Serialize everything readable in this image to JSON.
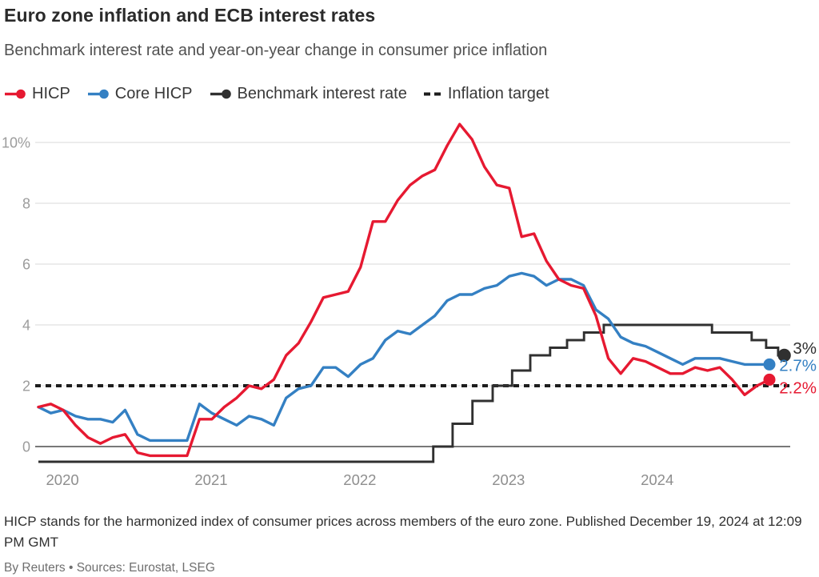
{
  "header": {
    "title": "Euro zone inflation and ECB interest rates",
    "subtitle": "Benchmark interest rate and year-on-year change in consumer price inflation"
  },
  "legend": {
    "items": [
      {
        "label": "HICP",
        "marker": "line-dot",
        "color": "#e61931"
      },
      {
        "label": "Core HICP",
        "marker": "line-dot",
        "color": "#3480c3"
      },
      {
        "label": "Benchmark interest rate",
        "marker": "line-dot",
        "color": "#303030"
      },
      {
        "label": "Inflation target",
        "marker": "dashes",
        "color": "#1d1d1d"
      }
    ]
  },
  "footer": {
    "note": "HICP stands for the harmonized index of consumer prices across members of the euro zone. Published December 19, 2024 at 12:09 PM GMT",
    "byline": "By Reuters • Sources: Eurostat, LSEG"
  },
  "chart_data": {
    "type": "line",
    "title": "Euro zone inflation and ECB interest rates",
    "subtitle": "Benchmark interest rate and year-on-year change in consumer price inflation",
    "x_unit": "month",
    "x_start": "2019-12",
    "x_end_inflation": "2024-11",
    "x_end_rate": "2024-12-18",
    "x_tick_labels": [
      "2020",
      "2021",
      "2022",
      "2023",
      "2024"
    ],
    "yticks": [
      0,
      2,
      4,
      6,
      8,
      10
    ],
    "ytick_labels": [
      "0",
      "2",
      "4",
      "6",
      "8",
      "10%"
    ],
    "ylim": [
      -0.8,
      11.2
    ],
    "grid": "horizontal",
    "legend_position": "top",
    "colors": {
      "grid": "#dadada",
      "zero_axis": "#4c4c4c",
      "tick_text": "#9c9c9c",
      "year_text": "#8e8e8e"
    },
    "inflation_target": {
      "value": 2,
      "style": "dashed",
      "color": "#1d1d1d",
      "label": "Inflation target"
    },
    "series": [
      {
        "key": "benchmark-rate",
        "name": "Benchmark interest rate",
        "type": "step",
        "color": "#303030",
        "end_label": "3%",
        "latest": 3.0,
        "label_dy": -9,
        "initial_rate": -0.5,
        "changes": [
          {
            "date": "2022-07-27",
            "rate": 0
          },
          {
            "date": "2022-09-14",
            "rate": 0.75
          },
          {
            "date": "2022-11-02",
            "rate": 1.5
          },
          {
            "date": "2022-12-21",
            "rate": 2
          },
          {
            "date": "2023-02-08",
            "rate": 2.5
          },
          {
            "date": "2023-03-22",
            "rate": 3
          },
          {
            "date": "2023-05-10",
            "rate": 3.25
          },
          {
            "date": "2023-06-21",
            "rate": 3.5
          },
          {
            "date": "2023-08-02",
            "rate": 3.75
          },
          {
            "date": "2023-09-20",
            "rate": 4
          },
          {
            "date": "2024-06-12",
            "rate": 3.75
          },
          {
            "date": "2024-09-18",
            "rate": 3.5
          },
          {
            "date": "2024-10-23",
            "rate": 3.25
          },
          {
            "date": "2024-12-18",
            "rate": 3
          }
        ]
      },
      {
        "key": "core-hicp",
        "name": "Core HICP",
        "type": "line",
        "color": "#3480c3",
        "end_label": "2.7%",
        "latest": 2.7,
        "label_dy": 1,
        "values": [
          1.3,
          1.1,
          1.2,
          1.0,
          0.9,
          0.9,
          0.8,
          1.2,
          0.4,
          0.2,
          0.2,
          0.2,
          0.2,
          1.4,
          1.1,
          0.9,
          0.7,
          1.0,
          0.9,
          0.7,
          1.6,
          1.9,
          2.0,
          2.6,
          2.6,
          2.3,
          2.7,
          2.9,
          3.5,
          3.8,
          3.7,
          4.0,
          4.3,
          4.8,
          5.0,
          5.0,
          5.2,
          5.3,
          5.6,
          5.7,
          5.6,
          5.3,
          5.5,
          5.5,
          5.3,
          4.5,
          4.2,
          3.6,
          3.4,
          3.3,
          3.1,
          2.9,
          2.7,
          2.9,
          2.9,
          2.9,
          2.8,
          2.7,
          2.7,
          2.7
        ]
      },
      {
        "key": "hicp",
        "name": "HICP",
        "type": "line",
        "color": "#e61931",
        "end_label": "2.2%",
        "latest": 2.2,
        "label_dy": 10,
        "values": [
          1.3,
          1.4,
          1.2,
          0.7,
          0.3,
          0.1,
          0.3,
          0.4,
          -0.2,
          -0.3,
          -0.3,
          -0.3,
          -0.3,
          0.9,
          0.9,
          1.3,
          1.6,
          2.0,
          1.9,
          2.2,
          3.0,
          3.4,
          4.1,
          4.9,
          5.0,
          5.1,
          5.9,
          7.4,
          7.4,
          8.1,
          8.6,
          8.9,
          9.1,
          9.9,
          10.6,
          10.1,
          9.2,
          8.6,
          8.5,
          6.9,
          7.0,
          6.1,
          5.5,
          5.3,
          5.2,
          4.3,
          2.9,
          2.4,
          2.9,
          2.8,
          2.6,
          2.4,
          2.4,
          2.6,
          2.5,
          2.6,
          2.2,
          1.7,
          2.0,
          2.2
        ]
      }
    ]
  }
}
